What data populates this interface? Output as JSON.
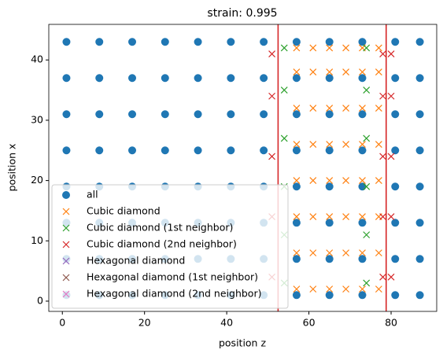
{
  "chart_data": {
    "type": "scatter",
    "title": "strain: 0.995",
    "xlabel": "position z",
    "ylabel": "position x",
    "xlim": [
      -3.3,
      91.1
    ],
    "ylim": [
      -1.7,
      45.9
    ],
    "xticks": [
      0,
      20,
      40,
      60,
      80
    ],
    "yticks": [
      0,
      10,
      20,
      30,
      40
    ],
    "legend": "lower left",
    "vlines": [
      {
        "x": 52.5,
        "color": "#d62728"
      },
      {
        "x": 78.8,
        "color": "#d62728"
      }
    ],
    "series": [
      {
        "name": "all",
        "color": "#1f77b4",
        "marker": "o",
        "x": [
          1,
          9,
          17,
          25,
          33,
          41,
          49,
          57,
          65,
          73,
          81,
          87,
          1,
          9,
          17,
          25,
          33,
          41,
          49,
          57,
          65,
          73,
          81,
          87,
          1,
          9,
          17,
          25,
          33,
          41,
          49,
          57,
          65,
          73,
          81,
          87,
          1,
          9,
          17,
          25,
          33,
          41,
          49,
          57,
          65,
          73,
          81,
          87,
          1,
          9,
          17,
          25,
          33,
          41,
          49,
          57,
          65,
          73,
          81,
          87,
          1,
          9,
          17,
          25,
          33,
          41,
          49,
          57,
          65,
          73,
          81,
          87,
          1,
          9,
          17,
          25,
          33,
          41,
          49,
          57,
          65,
          73,
          81,
          87,
          1,
          9,
          17,
          25,
          33,
          41,
          49,
          57,
          65,
          73,
          81,
          87
        ],
        "y": [
          1,
          1,
          1,
          1,
          1,
          1,
          1,
          1,
          1,
          1,
          1,
          1,
          7,
          7,
          7,
          7,
          7,
          7,
          7,
          7,
          7,
          7,
          7,
          7,
          13,
          13,
          13,
          13,
          13,
          13,
          13,
          13,
          13,
          13,
          13,
          13,
          19,
          19,
          19,
          19,
          19,
          19,
          19,
          19,
          19,
          19,
          19,
          19,
          25,
          25,
          25,
          25,
          25,
          25,
          25,
          25,
          25,
          25,
          25,
          25,
          31,
          31,
          31,
          31,
          31,
          31,
          31,
          31,
          31,
          31,
          31,
          31,
          37,
          37,
          37,
          37,
          37,
          37,
          37,
          37,
          37,
          37,
          37,
          37,
          43,
          43,
          43,
          43,
          43,
          43,
          43,
          43,
          43,
          43,
          43,
          43
        ]
      },
      {
        "name": "Cubic diamond",
        "color": "#ff7f0e",
        "marker": "x",
        "x": [
          57,
          61,
          65,
          69,
          73,
          77,
          57,
          61,
          65,
          69,
          73,
          77,
          57,
          61,
          65,
          69,
          73,
          77,
          57,
          61,
          65,
          69,
          73,
          77,
          57,
          61,
          65,
          69,
          73,
          77,
          57,
          61,
          65,
          69,
          73,
          77,
          57,
          61,
          65,
          69,
          73,
          77,
          57,
          61,
          65,
          69,
          73,
          77
        ],
        "y": [
          2,
          2,
          2,
          2,
          2,
          2,
          8,
          8,
          8,
          8,
          8,
          8,
          14,
          14,
          14,
          14,
          14,
          14,
          20,
          20,
          20,
          20,
          20,
          20,
          26,
          26,
          26,
          26,
          26,
          26,
          32,
          32,
          32,
          32,
          32,
          32,
          38,
          38,
          38,
          38,
          38,
          38,
          42,
          42,
          42,
          42,
          42,
          42
        ]
      },
      {
        "name": "Cubic diamond (1st neighbor)",
        "color": "#2ca02c",
        "marker": "x",
        "x": [
          54,
          74,
          54,
          74,
          54,
          74,
          54,
          74,
          54,
          74,
          54,
          74
        ],
        "y": [
          3,
          3,
          11,
          11,
          19,
          19,
          27,
          27,
          35,
          35,
          42,
          42
        ]
      },
      {
        "name": "Cubic diamond (2nd neighbor)",
        "color": "#d62728",
        "marker": "x",
        "x": [
          51,
          78,
          80,
          51,
          78,
          80,
          51,
          78,
          80,
          51,
          78,
          80,
          51,
          78,
          80
        ],
        "y": [
          4,
          4,
          4,
          14,
          14,
          14,
          24,
          24,
          24,
          34,
          34,
          34,
          41,
          41,
          41
        ]
      },
      {
        "name": "Hexagonal diamond",
        "color": "#9467bd",
        "marker": "x",
        "x": [],
        "y": []
      },
      {
        "name": "Hexagonal diamond (1st neighbor)",
        "color": "#8c564b",
        "marker": "x",
        "x": [],
        "y": []
      },
      {
        "name": "Hexagonal diamond (2nd neighbor)",
        "color": "#e377c2",
        "marker": "x",
        "x": [],
        "y": []
      }
    ]
  }
}
